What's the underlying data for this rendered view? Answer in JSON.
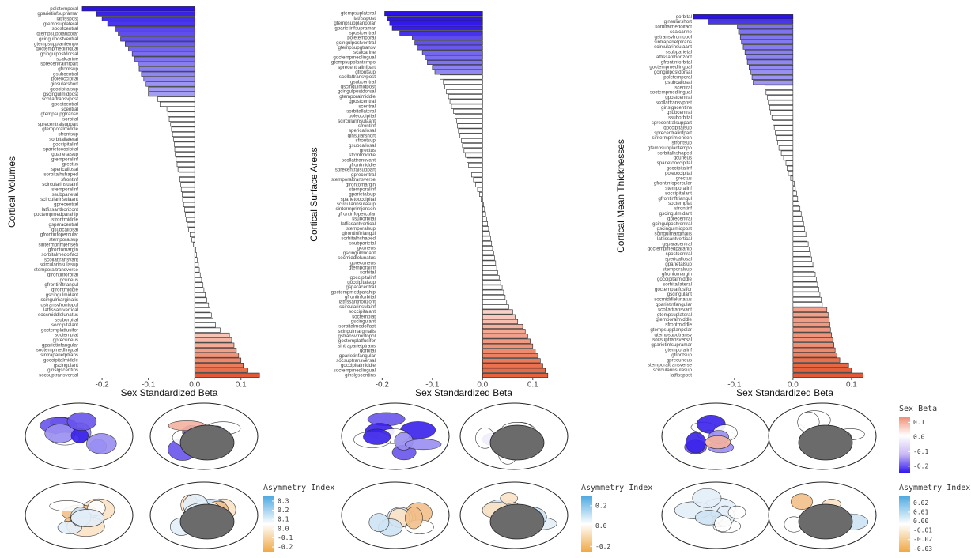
{
  "chart_data": [
    {
      "type": "bar",
      "orientation": "horizontal",
      "ylabel": "Cortical Volumes",
      "xlabel": "Sex Standardized Beta",
      "categories": [
        "poletemporal",
        "gparietinfsupramar",
        "latfisspost",
        "gtempsuplateral",
        "spostcentral",
        "gtempsupplanpolar",
        "gcingulpostventral",
        "gtempsupplantempo",
        "goctempmedlingual",
        "gcingulpostdorsal",
        "scalcarine",
        "sprecentralinfpart",
        "gfrontsup",
        "gsubcentral",
        "poleoccipital",
        "ginsularshort",
        "goccipitalsup",
        "gscingulmidpost",
        "scollattransvpost",
        "gpostcentral",
        "scentral",
        "gtempsupgtransv",
        "sorbital",
        "sprecentralsuppart",
        "gtemporalmiddle",
        "sfrontsup",
        "sorbitallateral",
        "goccipitalinf",
        "sparietooccipital",
        "gparietalsup",
        "gtemporalinf",
        "grectus",
        "spericallosal",
        "sorbitalhshaped",
        "sfrontinf",
        "scircularinsulainf",
        "stemporalinf",
        "ssubparietal",
        "scircularinsulaant",
        "gprecentral",
        "latfissanthorizont",
        "goctempmedparahip",
        "sfrontmiddle",
        "gsparacentral",
        "gsubcallosal",
        "gfrontinfopercular",
        "stemporalsup",
        "sintermprimjensen",
        "gfrontomargin",
        "sorbitalmedolfact",
        "scollattransvant",
        "scircularinsulasup",
        "stemporaltransverse",
        "gfrontinforbital",
        "gcuneus",
        "gfrontinftriangul",
        "gfrontmiddle",
        "gscingulmidant",
        "scingulmarginalis",
        "gstransvfrontopol",
        "latfissantvertical",
        "soccmiddlelunatus",
        "ssuborbital",
        "soccipitalant",
        "goctemplatfusifor",
        "soctemplat",
        "gprecuneus",
        "gparietinfangular",
        "soctempmedlingual",
        "sintraparietptrans",
        "goccipitalmiddle",
        "gscingulant",
        "ginslgscentins",
        "socsuptransversal"
      ],
      "values": [
        -0.243,
        -0.212,
        -0.2,
        -0.188,
        -0.172,
        -0.165,
        -0.16,
        -0.15,
        -0.143,
        -0.135,
        -0.13,
        -0.122,
        -0.12,
        -0.115,
        -0.11,
        -0.105,
        -0.1,
        -0.1,
        -0.08,
        -0.075,
        -0.06,
        -0.058,
        -0.055,
        -0.052,
        -0.05,
        -0.048,
        -0.046,
        -0.044,
        -0.043,
        -0.042,
        -0.04,
        -0.038,
        -0.036,
        -0.034,
        -0.032,
        -0.03,
        -0.029,
        -0.027,
        -0.026,
        -0.024,
        -0.022,
        -0.02,
        -0.018,
        -0.016,
        -0.013,
        -0.01,
        -0.006,
        -0.003,
        0.002,
        0.004,
        0.006,
        0.008,
        0.01,
        0.012,
        0.015,
        0.018,
        0.02,
        0.023,
        0.026,
        0.03,
        0.033,
        0.036,
        0.04,
        0.045,
        0.055,
        0.075,
        0.08,
        0.085,
        0.09,
        0.095,
        0.1,
        0.105,
        0.115,
        0.14
      ],
      "colors": [
        "#2b12ec",
        "#3a22ea",
        "#4330eb",
        "#4a37eb",
        "#5a48ec",
        "#5f4eed",
        "#6353ed",
        "#6b5dee",
        "#7264ef",
        "#7a6df0",
        "#7f73f0",
        "#887df1",
        "#8a80f1",
        "#9087f2",
        "#958df2",
        "#9b94f3",
        "#a39df4",
        "#a39df4",
        "#ffffff",
        "#ffffff",
        "#ffffff",
        "#ffffff",
        "#ffffff",
        "#ffffff",
        "#ffffff",
        "#ffffff",
        "#ffffff",
        "#ffffff",
        "#ffffff",
        "#ffffff",
        "#ffffff",
        "#ffffff",
        "#ffffff",
        "#ffffff",
        "#ffffff",
        "#ffffff",
        "#ffffff",
        "#ffffff",
        "#ffffff",
        "#ffffff",
        "#ffffff",
        "#ffffff",
        "#ffffff",
        "#ffffff",
        "#ffffff",
        "#ffffff",
        "#ffffff",
        "#ffffff",
        "#ffffff",
        "#ffffff",
        "#ffffff",
        "#ffffff",
        "#ffffff",
        "#ffffff",
        "#ffffff",
        "#ffffff",
        "#ffffff",
        "#ffffff",
        "#ffffff",
        "#ffffff",
        "#ffffff",
        "#ffffff",
        "#ffffff",
        "#ffffff",
        "#ffffff",
        "#f7c4b6",
        "#f5b8a7",
        "#f3ac98",
        "#f1a089",
        "#ef947a",
        "#ed886b",
        "#eb7c5c",
        "#e8704d",
        "#e4583a"
      ],
      "xlim": [
        -0.248,
        0.138
      ],
      "xticks": [
        -0.2,
        -0.1,
        {
          "value": 0,
          "label": "0.0"
        },
        0.1
      ],
      "grid": false
    },
    {
      "type": "bar",
      "orientation": "horizontal",
      "ylabel": "Cortical Surface Areas",
      "xlabel": "Sex Standardized Beta",
      "categories": [
        "gtempsuplateral",
        "latfisspost",
        "gtempsupplanpolar",
        "gparietinfsupramar",
        "spostcentral",
        "poletemporal",
        "gcingulpostventral",
        "gtempsupgtransv",
        "scalcarine",
        "goctempmedlingual",
        "gtempsupplantempo",
        "sprecentralinfpart",
        "gfrontsup",
        "scollattransvpost",
        "gsubcentral",
        "gscingulmidpost",
        "gcingulpostdorsal",
        "gtemporalmiddle",
        "gpostcentral",
        "scentral",
        "sorbitallateral",
        "poleoccipital",
        "scircularinsulaant",
        "sfrontinf",
        "spericallosal",
        "ginsularshort",
        "sfrontsup",
        "gsubcallosal",
        "grectus",
        "sfrontmiddle",
        "scollattransvant",
        "gfrontmiddle",
        "sprecentralsuppart",
        "gprecentral",
        "stemporaltransverse",
        "gfrontomargin",
        "stemporalinf",
        "gparietalsup",
        "sparietooccipital",
        "scircularinsulasup",
        "sintermprimjensen",
        "gfrontinfopercular",
        "ssuborbital",
        "latfissantvertical",
        "stemporalsup",
        "gfrontinftriangul",
        "sorbitalhshaped",
        "ssubparietal",
        "gcuneus",
        "gscingulmidant",
        "socmiddlelunatus",
        "gprecuneus",
        "gtemporalinf",
        "sorbital",
        "goccipitalinf",
        "goccipitalsup",
        "gsparacentral",
        "goctempmedparahip",
        "gfrontinforbital",
        "latfissanthorizont",
        "scircularinsulainf",
        "soccipitalant",
        "soctemplat",
        "gscingulant",
        "sorbitalmedolfact",
        "scingulmarginalis",
        "gstransvfrontopol",
        "goctemplatfusifor",
        "sintraparietptrans",
        "gorbital",
        "gparietinfangular",
        "socsuptransversal",
        "goccipitalmiddle",
        "soctempmedlingual",
        "ginslgscentins"
      ],
      "values": [
        -0.195,
        -0.19,
        -0.185,
        -0.18,
        -0.165,
        -0.14,
        -0.135,
        -0.13,
        -0.12,
        -0.115,
        -0.11,
        -0.1,
        -0.095,
        -0.085,
        -0.078,
        -0.075,
        -0.072,
        -0.068,
        -0.065,
        -0.062,
        -0.058,
        -0.055,
        -0.052,
        -0.05,
        -0.048,
        -0.045,
        -0.042,
        -0.04,
        -0.037,
        -0.034,
        -0.031,
        -0.028,
        -0.025,
        -0.022,
        -0.018,
        -0.014,
        -0.01,
        -0.006,
        -0.003,
        0.002,
        0.004,
        0.006,
        0.008,
        0.01,
        0.012,
        0.014,
        0.016,
        0.018,
        0.02,
        0.022,
        0.024,
        0.026,
        0.028,
        0.03,
        0.033,
        0.036,
        0.039,
        0.042,
        0.045,
        0.048,
        0.052,
        0.06,
        0.065,
        0.07,
        0.08,
        0.085,
        0.09,
        0.095,
        0.1,
        0.105,
        0.11,
        0.115,
        0.12,
        0.125,
        0.13
      ],
      "colors": [
        "#2b12ec",
        "#2f16ec",
        "#3419ec",
        "#381eeb",
        "#4733eb",
        "#5e4ced",
        "#6353ed",
        "#6858ee",
        "#7468ef",
        "#7a6ff0",
        "#8075f0",
        "#8c83f1",
        "#928af2",
        "#ffffff",
        "#ffffff",
        "#ffffff",
        "#ffffff",
        "#ffffff",
        "#ffffff",
        "#ffffff",
        "#ffffff",
        "#ffffff",
        "#ffffff",
        "#ffffff",
        "#ffffff",
        "#ffffff",
        "#ffffff",
        "#ffffff",
        "#ffffff",
        "#ffffff",
        "#ffffff",
        "#ffffff",
        "#ffffff",
        "#ffffff",
        "#ffffff",
        "#ffffff",
        "#ffffff",
        "#ffffff",
        "#ffffff",
        "#ffffff",
        "#ffffff",
        "#ffffff",
        "#ffffff",
        "#ffffff",
        "#ffffff",
        "#ffffff",
        "#ffffff",
        "#ffffff",
        "#ffffff",
        "#ffffff",
        "#ffffff",
        "#ffffff",
        "#ffffff",
        "#ffffff",
        "#ffffff",
        "#ffffff",
        "#ffffff",
        "#ffffff",
        "#ffffff",
        "#ffffff",
        "#ffffff",
        "#f9d2c7",
        "#f7c8bb",
        "#f6bfaf",
        "#f4b2a0",
        "#f3aa96",
        "#f2a28c",
        "#f09a82",
        "#ef9278",
        "#ee8a6e",
        "#ec8264",
        "#eb7a5a",
        "#ea7250",
        "#e86a46",
        "#e6623c"
      ],
      "xlim": [
        -0.21,
        0.135
      ],
      "xticks": [
        -0.2,
        -0.1,
        {
          "value": 0,
          "label": "0.0"
        },
        0.1
      ],
      "grid": false
    },
    {
      "type": "bar",
      "orientation": "horizontal",
      "ylabel": "Cortical Mean Thicknesses",
      "xlabel": "Sex Standardized Beta",
      "categories": [
        "gorbital",
        "ginsularshort",
        "sorbitalmedolfact",
        "scalcarine",
        "gstransvfrontopol",
        "sintraparietptrans",
        "scircularinsulaant",
        "ssubparietal",
        "latfissanthorizont",
        "gfrontinforbital",
        "goctempmedlingual",
        "gcingulpostdorsal",
        "poletemporal",
        "gsubcallosal",
        "scentral",
        "soctempmedlingual",
        "gpostcentral",
        "scollattransvpost",
        "ginslgscentins",
        "gsubcentral",
        "ssuborbital",
        "sprecentralsuppart",
        "goccipitalsup",
        "sprecentralinfpart",
        "sintermprimjensen",
        "sfrontsup",
        "gtempsupplantempo",
        "sorbitalhshaped",
        "gcuneus",
        "sparietooccipital",
        "goccipitalinf",
        "poleoccipital",
        "grectus",
        "gfrontinfopercular",
        "stemporalinf",
        "soccipitalant",
        "gfrontinftriangul",
        "soctemplat",
        "sfrontinf",
        "gscingulmidant",
        "gprecentral",
        "gcingulpostventral",
        "gscingulmidpost",
        "scingulmarginalis",
        "latfissantvertical",
        "gsparacentral",
        "goctempmedparahip",
        "spostcentral",
        "spericallosal",
        "gparietalsup",
        "stemporalsup",
        "gfrontomargin",
        "goccipitalmiddle",
        "sorbitallateral",
        "goctemplatfusifor",
        "gscingulant",
        "socmiddlelunatus",
        "gparietinfangular",
        "scollattransvant",
        "gtempsuplateral",
        "gtemporalmiddle",
        "sfrontmiddle",
        "gtempsupplanpolar",
        "gtempsupgtransv",
        "socsuptransversal",
        "gparietinfsupramar",
        "gtemporalinf",
        "gfrontsup",
        "gprecuneus",
        "stemporaltransverse",
        "scircularinsulasup",
        "latfisspost"
      ],
      "values": [
        -0.17,
        -0.145,
        -0.095,
        -0.093,
        -0.09,
        -0.088,
        -0.085,
        -0.082,
        -0.08,
        -0.078,
        -0.075,
        -0.072,
        -0.07,
        -0.068,
        -0.048,
        -0.046,
        -0.044,
        -0.042,
        -0.04,
        -0.038,
        -0.036,
        -0.034,
        -0.032,
        -0.03,
        -0.028,
        -0.026,
        -0.024,
        -0.02,
        -0.016,
        -0.012,
        -0.01,
        -0.008,
        -0.004,
        0.002,
        0.004,
        0.006,
        0.008,
        0.01,
        0.012,
        0.014,
        0.016,
        0.018,
        0.02,
        0.022,
        0.024,
        0.026,
        0.028,
        0.03,
        0.032,
        0.034,
        0.036,
        0.038,
        0.04,
        0.042,
        0.044,
        0.046,
        0.048,
        0.05,
        0.058,
        0.06,
        0.062,
        0.063,
        0.064,
        0.066,
        0.068,
        0.07,
        0.072,
        0.075,
        0.08,
        0.095,
        0.1,
        0.12
      ],
      "colors": [
        "#2b12ec",
        "#4a37eb",
        "#7d72f0",
        "#7f74f0",
        "#8177f0",
        "#837af0",
        "#877df1",
        "#8a81f1",
        "#8d84f1",
        "#9088f2",
        "#948cf2",
        "#9891f3",
        "#9b94f3",
        "#9e97f3",
        "#ffffff",
        "#ffffff",
        "#ffffff",
        "#ffffff",
        "#ffffff",
        "#ffffff",
        "#ffffff",
        "#ffffff",
        "#ffffff",
        "#ffffff",
        "#ffffff",
        "#ffffff",
        "#ffffff",
        "#ffffff",
        "#ffffff",
        "#ffffff",
        "#ffffff",
        "#ffffff",
        "#ffffff",
        "#ffffff",
        "#ffffff",
        "#ffffff",
        "#ffffff",
        "#ffffff",
        "#ffffff",
        "#ffffff",
        "#ffffff",
        "#ffffff",
        "#ffffff",
        "#ffffff",
        "#ffffff",
        "#ffffff",
        "#ffffff",
        "#ffffff",
        "#ffffff",
        "#ffffff",
        "#ffffff",
        "#ffffff",
        "#ffffff",
        "#ffffff",
        "#ffffff",
        "#ffffff",
        "#ffffff",
        "#ffffff",
        "#f2a28c",
        "#f1a089",
        "#f09d86",
        "#f09a82",
        "#ef977f",
        "#ef947a",
        "#ee9177",
        "#ee8e73",
        "#ed8a6f",
        "#ec8264",
        "#e8704d",
        "#e66843",
        "#e5613c",
        "#e4583a"
      ],
      "xlim": [
        -0.17,
        0.142
      ],
      "xticks": [
        -0.1,
        {
          "value": 0,
          "label": "0.0"
        },
        0.1
      ],
      "grid": false
    }
  ],
  "legends": [
    {
      "title": "Sex Beta",
      "lim": [
        -0.25,
        0.14
      ],
      "colors": [
        "#f08a70",
        "#ffffff",
        "#c9b8f5",
        "#2a10f0"
      ],
      "ticks": [
        0.1,
        {
          "value": 0,
          "label": "0.0"
        },
        -0.1,
        -0.2
      ]
    },
    {
      "title": "Asymmetry Index",
      "lim": [
        -0.26,
        0.36
      ],
      "colors": [
        "#4aa8e0",
        "#ffffff",
        "#f0a640"
      ],
      "ticks": [
        0.3,
        0.2,
        0.1,
        {
          "value": 0,
          "label": "0.0"
        },
        -0.1,
        -0.2
      ]
    },
    {
      "title": "Asymmetry Index",
      "lim": [
        -0.26,
        0.3
      ],
      "colors": [
        "#4aa8e0",
        "#ffffff",
        "#f0a640"
      ],
      "ticks": [
        0.2,
        {
          "value": 0,
          "label": "0.0"
        },
        -0.2
      ]
    },
    {
      "title": "Asymmetry Index",
      "lim": [
        -0.034,
        0.028
      ],
      "colors": [
        "#4aa8e0",
        "#ffffff",
        "#f0a640"
      ],
      "ticks": [
        0.02,
        0.01,
        {
          "value": 0,
          "label": "0.00"
        },
        -0.01,
        -0.02,
        -0.03
      ]
    }
  ]
}
